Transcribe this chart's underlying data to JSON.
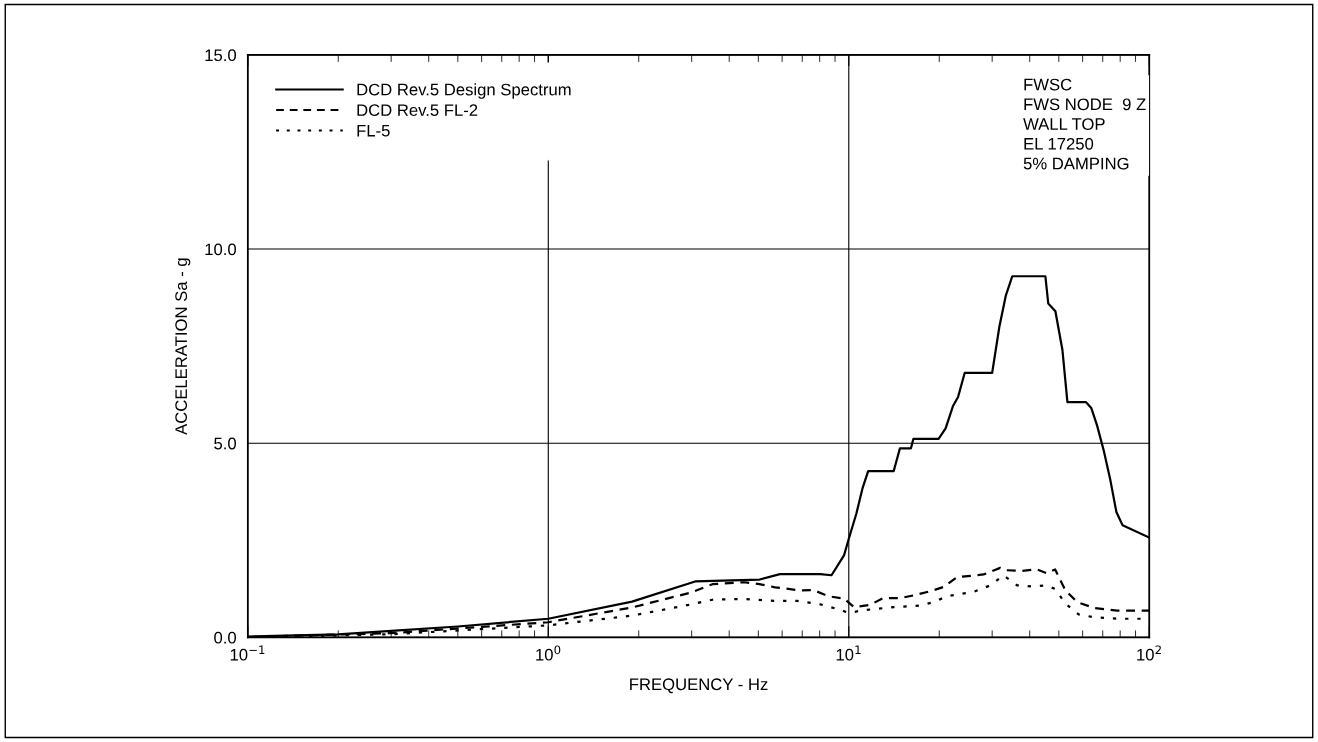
{
  "chart_data": {
    "type": "line",
    "xlabel": "FREQUENCY - Hz",
    "ylabel": "ACCELERATION Sa - g",
    "log": "x",
    "xlim": [
      0.1,
      100
    ],
    "ylim": [
      0,
      15
    ],
    "xticks": [
      {
        "value": 0.1,
        "label": "10$^{−1}$"
      },
      {
        "value": 1,
        "label": "10$^{0}$"
      },
      {
        "value": 10,
        "label": "10$^{1}$"
      },
      {
        "value": 100,
        "label": "10$^{2}$"
      }
    ],
    "yticks": [
      {
        "value": 0,
        "label": "0.0"
      },
      {
        "value": 5,
        "label": "5.0"
      },
      {
        "value": 10,
        "label": "10.0"
      },
      {
        "value": 15,
        "label": "15.0"
      }
    ],
    "grid": true,
    "legend": "top left",
    "annotations": [
      "FWSC\nFWS NODE  9 Z\nWALL TOP\nEL 17250\n5% DAMPING"
    ],
    "series": [
      {
        "name": "DCD Rev.5 Design Spectrum",
        "color": "#000000",
        "line_style": "solid",
        "x": [
          0.1,
          0.2,
          0.3,
          0.5,
          1.0,
          1.9,
          3.08,
          5.05,
          5.9,
          8.04,
          8.76,
          9.64,
          10,
          10.6,
          11.1,
          11.6,
          14.1,
          14.8,
          16.1,
          16.4,
          19.9,
          21.0,
          22.2,
          23.1,
          24.3,
          30.0,
          31.7,
          33.3,
          35.0,
          45.1,
          46.1,
          48.7,
          51.4,
          53.4,
          61.5,
          64.1,
          67.0,
          70.5,
          74.2,
          77.7,
          81.5,
          100
        ],
        "values": [
          0.02,
          0.08,
          0.17,
          0.28,
          0.48,
          0.92,
          1.44,
          1.49,
          1.63,
          1.63,
          1.6,
          2.11,
          2.54,
          3.19,
          3.83,
          4.28,
          4.28,
          4.87,
          4.87,
          5.11,
          5.11,
          5.38,
          5.95,
          6.19,
          6.81,
          6.81,
          8.0,
          8.8,
          9.3,
          9.3,
          8.6,
          8.4,
          7.4,
          6.06,
          6.06,
          5.91,
          5.46,
          4.82,
          4.05,
          3.23,
          2.89,
          2.57
        ]
      },
      {
        "name": "DCD Rev.5 FL-2",
        "color": "#000000",
        "line_style": "dashed",
        "x": [
          0.1,
          0.3,
          1.0,
          1.9,
          2.97,
          3.52,
          4.48,
          5.05,
          5.69,
          6.88,
          7.62,
          8.55,
          9.64,
          10.4,
          11.8,
          13.0,
          14.8,
          16.4,
          18.7,
          20.7,
          22.9,
          28.1,
          31.9,
          33.4,
          37.2,
          42.3,
          45.7,
          48.6,
          52.6,
          57.5,
          65.3,
          78.2,
          100
        ],
        "values": [
          0.01,
          0.11,
          0.39,
          0.77,
          1.15,
          1.37,
          1.42,
          1.37,
          1.29,
          1.21,
          1.22,
          1.06,
          1.0,
          0.78,
          0.84,
          1.01,
          1.01,
          1.08,
          1.19,
          1.3,
          1.55,
          1.62,
          1.79,
          1.73,
          1.71,
          1.75,
          1.65,
          1.75,
          1.21,
          0.91,
          0.76,
          0.69,
          0.69
        ]
      },
      {
        "name": "FL-5",
        "color": "#000000",
        "line_style": "dotted",
        "x": [
          0.1,
          0.3,
          1.0,
          1.9,
          2.86,
          3.52,
          4.48,
          5.69,
          6.73,
          8.04,
          9.18,
          10,
          11.2,
          14.1,
          17.3,
          19.2,
          21.2,
          26.0,
          29.6,
          32.7,
          36.3,
          41.2,
          45.1,
          48.6,
          52.6,
          58.2,
          65.3,
          78.2,
          100
        ],
        "values": [
          0.0,
          0.08,
          0.31,
          0.56,
          0.82,
          0.97,
          0.99,
          0.94,
          0.94,
          0.85,
          0.73,
          0.63,
          0.7,
          0.78,
          0.82,
          0.91,
          1.06,
          1.17,
          1.34,
          1.6,
          1.34,
          1.31,
          1.34,
          1.25,
          0.87,
          0.59,
          0.52,
          0.48,
          0.48
        ]
      }
    ]
  }
}
